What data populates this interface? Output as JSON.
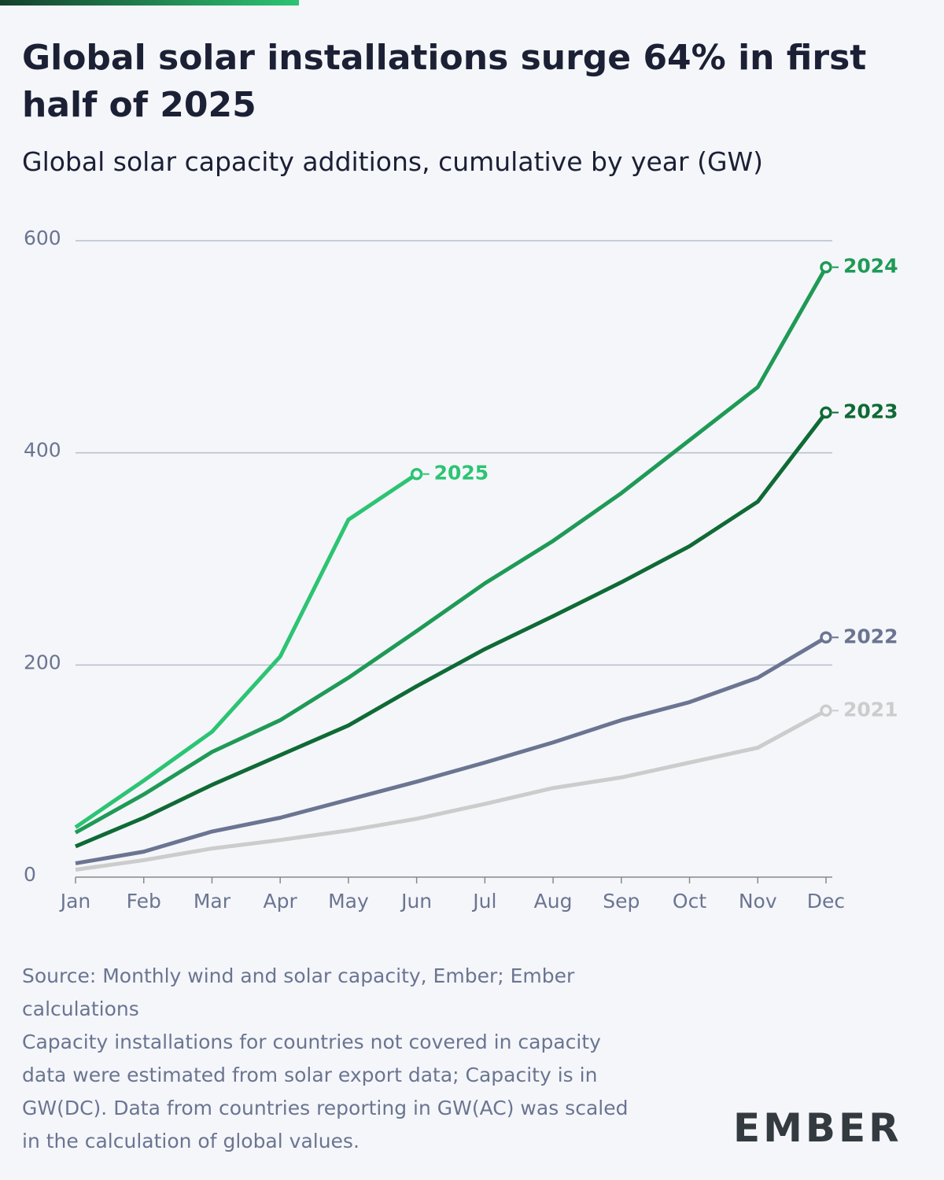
{
  "chart_data": {
    "type": "line",
    "title": "Global solar installations surge 64% in first half of 2025",
    "subtitle": "Global solar capacity additions, cumulative by year (GW)",
    "categories": [
      "Jan",
      "Feb",
      "Mar",
      "Apr",
      "May",
      "Jun",
      "Jul",
      "Aug",
      "Sep",
      "Oct",
      "Nov",
      "Dec"
    ],
    "ylim": [
      0,
      600
    ],
    "yticks": [
      0,
      200,
      400,
      600
    ],
    "grid": true,
    "series": [
      {
        "name": "2021",
        "color": "#cccccc",
        "values": [
          7,
          16,
          27,
          35,
          44,
          55,
          69,
          84,
          94,
          108,
          122,
          157
        ]
      },
      {
        "name": "2022",
        "color": "#6b7591",
        "values": [
          13,
          24,
          43,
          56,
          73,
          90,
          108,
          127,
          148,
          165,
          188,
          226
        ]
      },
      {
        "name": "2023",
        "color": "#0f6a35",
        "values": [
          29,
          56,
          87,
          115,
          143,
          180,
          215,
          246,
          278,
          312,
          354,
          438
        ]
      },
      {
        "name": "2024",
        "color": "#1f9a56",
        "values": [
          42,
          78,
          118,
          148,
          188,
          232,
          277,
          317,
          362,
          412,
          462,
          575
        ]
      },
      {
        "name": "2025",
        "color": "#2cc473",
        "values": [
          47,
          91,
          137,
          208,
          337,
          380,
          null,
          null,
          null,
          null,
          null,
          null
        ]
      }
    ],
    "source": "Source: Monthly wind and solar capacity, Ember; Ember calculations",
    "note": "Capacity installations for countries not covered in capacity data were estimated from solar export data; Capacity is in GW(DC). Data from countries reporting in GW(AC) was scaled in the calculation of global values.",
    "logo": "EMBER"
  }
}
